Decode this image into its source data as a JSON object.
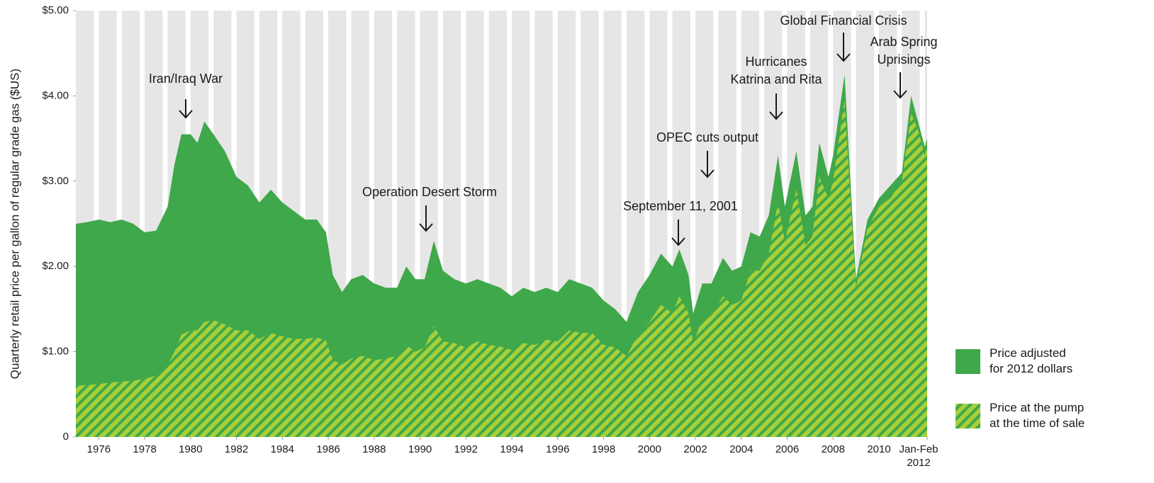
{
  "chart_data": {
    "type": "area",
    "y_label": "Quarterly retail price per gallon of regular grade gas ($US)",
    "x": [
      1975,
      1975.5,
      1976,
      1976.5,
      1977,
      1977.5,
      1978,
      1978.5,
      1979,
      1979.3,
      1979.6,
      1980,
      1980.3,
      1980.6,
      1981,
      1981.5,
      1982,
      1982.5,
      1983,
      1983.5,
      1984,
      1984.5,
      1985,
      1985.5,
      1985.9,
      1986.2,
      1986.6,
      1987,
      1987.5,
      1988,
      1988.5,
      1989,
      1989.4,
      1989.8,
      1990.2,
      1990.6,
      1991,
      1991.5,
      1992,
      1992.5,
      1993,
      1993.5,
      1994,
      1994.5,
      1995,
      1995.5,
      1996,
      1996.5,
      1997,
      1997.5,
      1998,
      1998.5,
      1999,
      1999.5,
      2000,
      2000.5,
      2001,
      2001.3,
      2001.7,
      2001.9,
      2002.3,
      2002.7,
      2003.2,
      2003.6,
      2004,
      2004.4,
      2004.8,
      2005.2,
      2005.6,
      2005.9,
      2006.4,
      2006.8,
      2007.1,
      2007.4,
      2007.8,
      2008,
      2008.5,
      2008.9,
      2009,
      2009.5,
      2010,
      2010.5,
      2011,
      2011.4,
      2011.7,
      2012,
      2012.1
    ],
    "series": [
      {
        "name": "Price adjusted for 2012 dollars",
        "color": "#3fa84a",
        "hatch": false,
        "values": [
          2.5,
          2.52,
          2.55,
          2.52,
          2.55,
          2.5,
          2.4,
          2.42,
          2.7,
          3.2,
          3.55,
          3.55,
          3.45,
          3.7,
          3.55,
          3.35,
          3.05,
          2.95,
          2.75,
          2.9,
          2.75,
          2.65,
          2.55,
          2.55,
          2.4,
          1.9,
          1.7,
          1.85,
          1.9,
          1.8,
          1.75,
          1.75,
          2.0,
          1.85,
          1.85,
          2.3,
          1.95,
          1.85,
          1.8,
          1.85,
          1.8,
          1.75,
          1.65,
          1.75,
          1.7,
          1.75,
          1.7,
          1.85,
          1.8,
          1.75,
          1.6,
          1.5,
          1.35,
          1.7,
          1.9,
          2.15,
          2.0,
          2.2,
          1.9,
          1.45,
          1.8,
          1.8,
          2.1,
          1.95,
          2.0,
          2.4,
          2.35,
          2.6,
          3.3,
          2.7,
          3.35,
          2.6,
          2.7,
          3.45,
          3.05,
          3.3,
          4.25,
          2.3,
          1.85,
          2.55,
          2.8,
          2.95,
          3.1,
          4.0,
          3.7,
          3.4,
          3.5
        ]
      },
      {
        "name": "Price at the pump at the time of sale",
        "color": "#a6cf3a",
        "hatch": true,
        "values": [
          0.6,
          0.61,
          0.62,
          0.64,
          0.65,
          0.66,
          0.68,
          0.72,
          0.85,
          1.0,
          1.2,
          1.25,
          1.25,
          1.35,
          1.37,
          1.32,
          1.25,
          1.25,
          1.15,
          1.22,
          1.18,
          1.15,
          1.15,
          1.17,
          1.13,
          0.9,
          0.85,
          0.92,
          0.95,
          0.9,
          0.92,
          0.95,
          1.08,
          1.0,
          1.05,
          1.3,
          1.12,
          1.1,
          1.05,
          1.12,
          1.08,
          1.06,
          1.02,
          1.1,
          1.08,
          1.14,
          1.12,
          1.25,
          1.22,
          1.22,
          1.08,
          1.05,
          0.95,
          1.2,
          1.35,
          1.55,
          1.45,
          1.65,
          1.45,
          1.1,
          1.38,
          1.42,
          1.65,
          1.55,
          1.6,
          1.95,
          1.95,
          2.15,
          2.75,
          2.3,
          2.9,
          2.25,
          2.35,
          3.05,
          2.8,
          3.0,
          3.95,
          2.15,
          1.75,
          2.45,
          2.7,
          2.8,
          3.0,
          3.8,
          3.6,
          3.3,
          3.45
        ]
      }
    ],
    "xlim": [
      1975,
      2012.1
    ],
    "xticks": [
      1976,
      1978,
      1980,
      1982,
      1984,
      1986,
      1988,
      1990,
      1992,
      1994,
      1996,
      1998,
      2000,
      2002,
      2004,
      2006,
      2008,
      2010,
      {
        "value": 2012.1,
        "label": "Jan-Feb 2012"
      }
    ],
    "ylim": [
      0,
      5
    ],
    "yticks": [
      0,
      {
        "value": 1,
        "label": "$1.00"
      },
      {
        "value": 2,
        "label": "$2.00"
      },
      {
        "value": 3,
        "label": "$3.00"
      },
      {
        "value": 4,
        "label": "$4.00"
      },
      {
        "value": 5,
        "label": "$5.00"
      }
    ],
    "year_stripes": true,
    "legend": "lower right",
    "annotations": [
      [
        "Iran/Iraq War"
      ],
      [
        "Operation Desert Storm"
      ],
      [
        "September 11, 2001"
      ],
      [
        "OPEC cuts output"
      ],
      [
        "Hurricanes",
        "Katrina and Rita"
      ],
      [
        "Global Financial Crisis"
      ],
      [
        "Arab Spring",
        "Uprisings"
      ]
    ]
  }
}
